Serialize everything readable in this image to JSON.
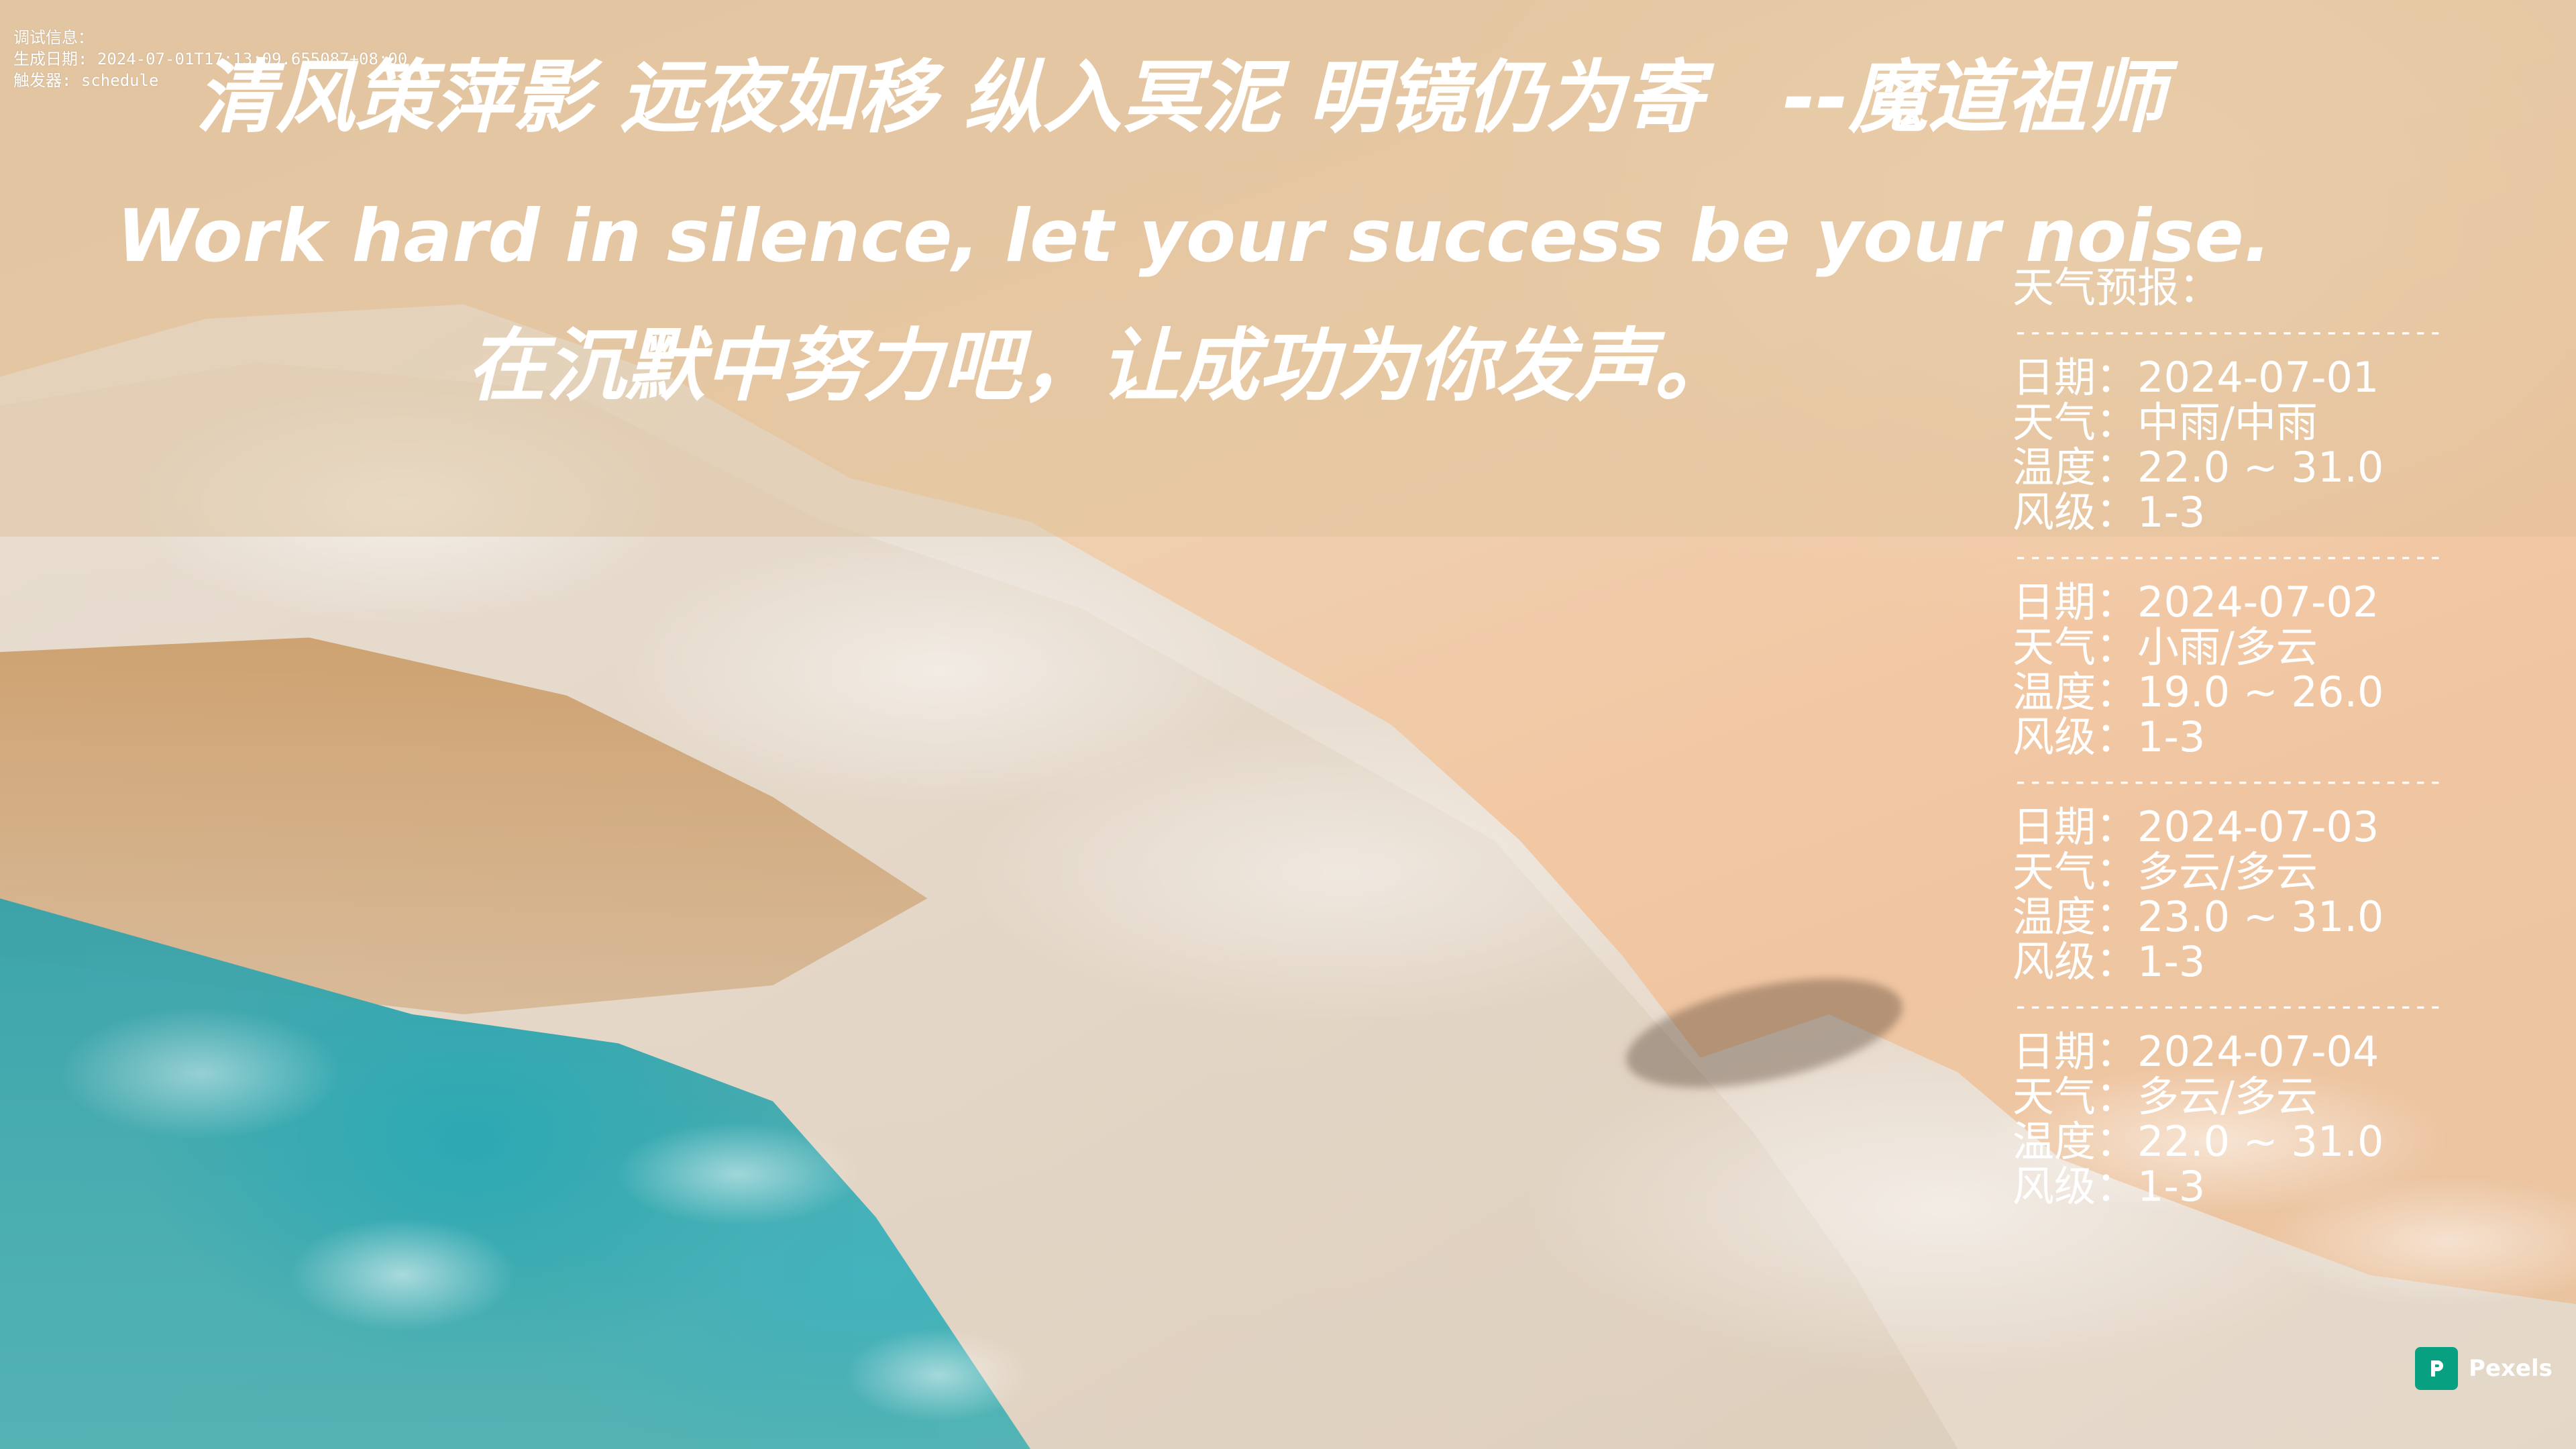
{
  "debug": {
    "line1": "调试信息：",
    "line2": "生成日期: 2024-07-01T17:13:09.655087+08:00",
    "line3": "触发器: schedule"
  },
  "quotes": {
    "cn_poem": "清风策萍影 远夜如移 纵入冥泥 明镜仍为寄　--魔道祖师",
    "en": "Work hard in silence, let your success be your noise.",
    "cn_translation": "在沉默中努力吧，让成功为你发声。"
  },
  "weather": {
    "title": "天气预报：",
    "divider": "-------------------------------",
    "labels": {
      "date": "日期：",
      "weather": "天气：",
      "temp": "温度：",
      "wind": "风级："
    },
    "days": [
      {
        "date": "2024-07-01",
        "weather": "中雨/中雨",
        "temp": "22.0 ~ 31.0",
        "wind": "1-3"
      },
      {
        "date": "2024-07-02",
        "weather": "小雨/多云",
        "temp": "19.0 ~ 26.0",
        "wind": "1-3"
      },
      {
        "date": "2024-07-03",
        "weather": "多云/多云",
        "temp": "23.0 ~ 31.0",
        "wind": "1-3"
      },
      {
        "date": "2024-07-04",
        "weather": "多云/多云",
        "temp": "22.0 ~ 31.0",
        "wind": "1-3"
      }
    ]
  },
  "credit": {
    "label": "Pexels",
    "icon": "pexels-logo-icon",
    "color": "#07a081"
  },
  "colors": {
    "text": "#ffffff",
    "water": "#2d9ea8",
    "sand": "#e8cba9"
  }
}
